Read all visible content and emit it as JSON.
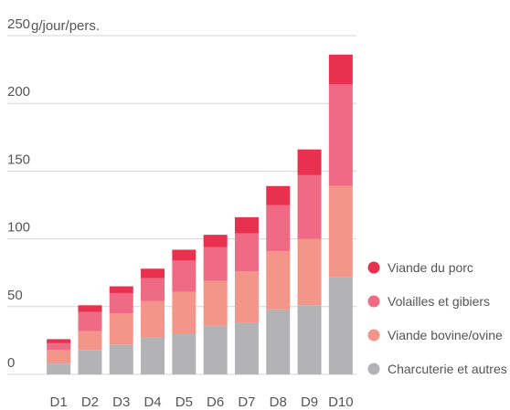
{
  "chart_data": {
    "type": "stacked_bar",
    "y_axis_label": "g/jour/pers.",
    "categories": [
      "D1",
      "D2",
      "D3",
      "D4",
      "D5",
      "D6",
      "D7",
      "D8",
      "D9",
      "D10"
    ],
    "series": [
      {
        "name": "Charcuterie et autres",
        "color": "#b3b3b5",
        "values": [
          8,
          18,
          22,
          27,
          30,
          36,
          38,
          48,
          51,
          72
        ]
      },
      {
        "name": "Viande bovine/ovine",
        "color": "#f4958a",
        "values": [
          10,
          14,
          23,
          27,
          31,
          33,
          38,
          43,
          49,
          67
        ]
      },
      {
        "name": "Volailles et gibiers",
        "color": "#ef6b85",
        "values": [
          5,
          14,
          15,
          17,
          23,
          25,
          28,
          34,
          47,
          75
        ]
      },
      {
        "name": "Viande du porc",
        "color": "#e8304f",
        "values": [
          3,
          5,
          5,
          7,
          8,
          9,
          12,
          14,
          19,
          22
        ]
      }
    ],
    "ylim": [
      0,
      250
    ],
    "yticks": [
      0,
      50,
      100,
      150,
      200,
      250
    ],
    "grid": true,
    "legend": "right"
  }
}
